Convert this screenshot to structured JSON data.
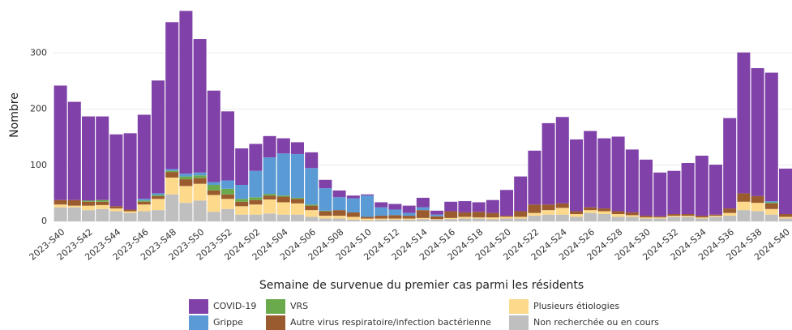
{
  "chart_data": {
    "type": "stacked_bar",
    "xlabel": "Semaine de survenue du premier cas parmi les résidents",
    "ylabel": "Nombre",
    "categories": [
      "2023-S40",
      null,
      "2023-S42",
      null,
      "2023-S44",
      null,
      "2023-S46",
      null,
      "2023-S48",
      null,
      "2023-S50",
      null,
      "2023-S52",
      null,
      "2024-S02",
      null,
      "2024-S04",
      null,
      "2024-S06",
      null,
      "2024-S08",
      null,
      "2024-S10",
      null,
      "2024-S12",
      null,
      "2024-S14",
      null,
      "2024-S16",
      null,
      "2024-S18",
      null,
      "2024-S20",
      null,
      "2024-S22",
      null,
      "2024-S24",
      null,
      "2024-S26",
      null,
      "2024-S28",
      null,
      "2024-S30",
      null,
      "2024-S32",
      null,
      "2024-S34",
      null,
      "2024-S36",
      null,
      "2024-S38",
      null,
      "2024-S40"
    ],
    "series": [
      {
        "name": "COVID-19",
        "color": "#8041a9",
        "values": [
          204,
          175,
          150,
          149,
          128,
          136,
          150,
          201,
          262,
          290,
          238,
          163,
          123,
          65,
          48,
          38,
          27,
          21,
          28,
          15,
          12,
          5,
          2,
          9,
          10,
          13,
          17,
          7,
          17,
          20,
          17,
          23,
          46,
          62,
          96,
          145,
          154,
          128,
          136,
          125,
          133,
          112,
          100,
          78,
          77,
          91,
          107,
          89,
          161,
          251,
          228,
          229,
          81
        ]
      },
      {
        "name": "Grippe",
        "color": "#5b9bd5",
        "values": [
          0,
          0,
          0,
          0,
          0,
          0,
          3,
          3,
          3,
          5,
          5,
          5,
          15,
          25,
          47,
          65,
          75,
          78,
          65,
          40,
          23,
          25,
          38,
          15,
          10,
          5,
          5,
          3,
          0,
          0,
          0,
          0,
          0,
          0,
          0,
          0,
          0,
          0,
          0,
          0,
          0,
          0,
          0,
          0,
          0,
          0,
          0,
          0,
          0,
          0,
          0,
          2,
          0
        ]
      },
      {
        "name": "VRS",
        "color": "#6aaa4c",
        "values": [
          0,
          0,
          2,
          3,
          0,
          0,
          2,
          2,
          2,
          5,
          5,
          10,
          10,
          5,
          5,
          3,
          2,
          2,
          2,
          1,
          0,
          0,
          0,
          0,
          0,
          0,
          0,
          0,
          0,
          0,
          0,
          0,
          0,
          0,
          0,
          0,
          0,
          0,
          0,
          0,
          0,
          0,
          0,
          0,
          0,
          0,
          0,
          0,
          0,
          0,
          0,
          2,
          0
        ]
      },
      {
        "name": "Autre virus respiratoire/infection bactérienne",
        "color": "#9a5b2f",
        "values": [
          8,
          10,
          7,
          6,
          4,
          3,
          5,
          5,
          10,
          12,
          10,
          8,
          8,
          8,
          8,
          7,
          10,
          8,
          8,
          8,
          10,
          8,
          3,
          5,
          6,
          5,
          14,
          5,
          12,
          8,
          10,
          8,
          2,
          10,
          15,
          10,
          8,
          5,
          5,
          5,
          5,
          5,
          3,
          2,
          3,
          3,
          3,
          2,
          8,
          15,
          12,
          10,
          5
        ]
      },
      {
        "name": "Plusieurs étiologies",
        "color": "#fdd98c",
        "values": [
          5,
          3,
          8,
          7,
          5,
          3,
          12,
          20,
          30,
          30,
          30,
          30,
          18,
          15,
          18,
          25,
          22,
          20,
          12,
          5,
          5,
          5,
          3,
          2,
          2,
          2,
          2,
          1,
          2,
          3,
          2,
          3,
          3,
          3,
          5,
          8,
          12,
          5,
          5,
          5,
          5,
          3,
          2,
          2,
          2,
          2,
          2,
          2,
          5,
          15,
          15,
          10,
          3
        ]
      },
      {
        "name": "Non recherchée ou en cours",
        "color": "#bfbfbf",
        "values": [
          25,
          25,
          20,
          22,
          18,
          15,
          18,
          20,
          48,
          33,
          37,
          17,
          22,
          12,
          12,
          14,
          12,
          12,
          8,
          5,
          5,
          3,
          2,
          3,
          3,
          3,
          4,
          3,
          4,
          5,
          5,
          4,
          5,
          5,
          10,
          12,
          12,
          8,
          15,
          13,
          8,
          8,
          5,
          5,
          8,
          8,
          5,
          8,
          10,
          20,
          18,
          12,
          5
        ]
      }
    ],
    "ylim": [
      0,
      380
    ],
    "yticks": [
      0,
      100,
      200,
      300
    ],
    "grid": true
  }
}
